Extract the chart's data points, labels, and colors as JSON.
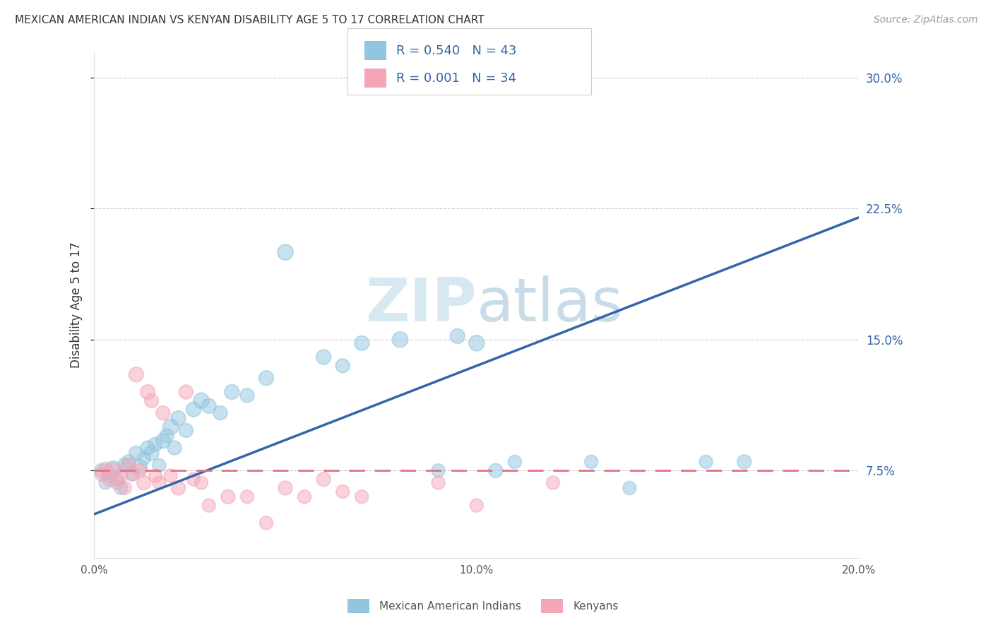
{
  "title": "MEXICAN AMERICAN INDIAN VS KENYAN DISABILITY AGE 5 TO 17 CORRELATION CHART",
  "source": "Source: ZipAtlas.com",
  "ylabel": "Disability Age 5 to 17",
  "xlim": [
    0.0,
    0.2
  ],
  "ylim": [
    0.025,
    0.315
  ],
  "xticks": [
    0.0,
    0.05,
    0.1,
    0.15,
    0.2
  ],
  "xtick_labels": [
    "0.0%",
    "",
    "10.0%",
    "",
    "20.0%"
  ],
  "yticks": [
    0.075,
    0.15,
    0.225,
    0.3
  ],
  "ytick_labels": [
    "7.5%",
    "15.0%",
    "22.5%",
    "30.0%"
  ],
  "legend_labels": [
    "Mexican American Indians",
    "Kenyans"
  ],
  "r_blue": "R = 0.540",
  "n_blue": "N = 43",
  "r_pink": "R = 0.001",
  "n_pink": "N = 34",
  "blue_color": "#92C5DE",
  "pink_color": "#F4A6B8",
  "blue_line_color": "#3465A8",
  "pink_line_color": "#E07088",
  "blue_scatter_x": [
    0.002,
    0.003,
    0.004,
    0.005,
    0.006,
    0.007,
    0.008,
    0.009,
    0.01,
    0.011,
    0.012,
    0.013,
    0.014,
    0.015,
    0.016,
    0.017,
    0.018,
    0.019,
    0.02,
    0.021,
    0.022,
    0.024,
    0.026,
    0.028,
    0.03,
    0.033,
    0.036,
    0.04,
    0.045,
    0.05,
    0.06,
    0.065,
    0.07,
    0.08,
    0.09,
    0.095,
    0.1,
    0.105,
    0.11,
    0.13,
    0.14,
    0.16,
    0.17
  ],
  "blue_scatter_y": [
    0.075,
    0.068,
    0.072,
    0.076,
    0.07,
    0.065,
    0.078,
    0.08,
    0.073,
    0.085,
    0.077,
    0.082,
    0.088,
    0.085,
    0.09,
    0.078,
    0.092,
    0.095,
    0.1,
    0.088,
    0.105,
    0.098,
    0.11,
    0.115,
    0.112,
    0.108,
    0.12,
    0.118,
    0.128,
    0.2,
    0.14,
    0.135,
    0.148,
    0.15,
    0.075,
    0.152,
    0.148,
    0.075,
    0.08,
    0.08,
    0.065,
    0.08,
    0.08
  ],
  "pink_scatter_x": [
    0.002,
    0.003,
    0.004,
    0.005,
    0.006,
    0.007,
    0.008,
    0.009,
    0.01,
    0.011,
    0.012,
    0.013,
    0.014,
    0.015,
    0.016,
    0.017,
    0.018,
    0.02,
    0.022,
    0.024,
    0.026,
    0.028,
    0.03,
    0.035,
    0.04,
    0.045,
    0.05,
    0.055,
    0.06,
    0.065,
    0.07,
    0.09,
    0.1,
    0.12
  ],
  "pink_scatter_y": [
    0.073,
    0.076,
    0.07,
    0.075,
    0.068,
    0.072,
    0.065,
    0.078,
    0.073,
    0.13,
    0.075,
    0.068,
    0.12,
    0.115,
    0.072,
    0.068,
    0.108,
    0.072,
    0.065,
    0.12,
    0.07,
    0.068,
    0.055,
    0.06,
    0.06,
    0.045,
    0.065,
    0.06,
    0.07,
    0.063,
    0.06,
    0.068,
    0.055,
    0.068
  ],
  "blue_dot_sizes": [
    200,
    180,
    200,
    250,
    200,
    180,
    220,
    200,
    180,
    200,
    220,
    180,
    200,
    220,
    200,
    180,
    220,
    200,
    250,
    200,
    220,
    200,
    220,
    250,
    220,
    200,
    220,
    200,
    220,
    250,
    220,
    200,
    220,
    250,
    180,
    220,
    250,
    200,
    180,
    180,
    180,
    180,
    200
  ],
  "pink_dot_sizes": [
    200,
    180,
    200,
    220,
    180,
    200,
    180,
    200,
    200,
    220,
    180,
    200,
    220,
    200,
    180,
    180,
    200,
    180,
    200,
    200,
    180,
    180,
    180,
    200,
    180,
    180,
    200,
    180,
    200,
    180,
    180,
    180,
    180,
    180
  ]
}
